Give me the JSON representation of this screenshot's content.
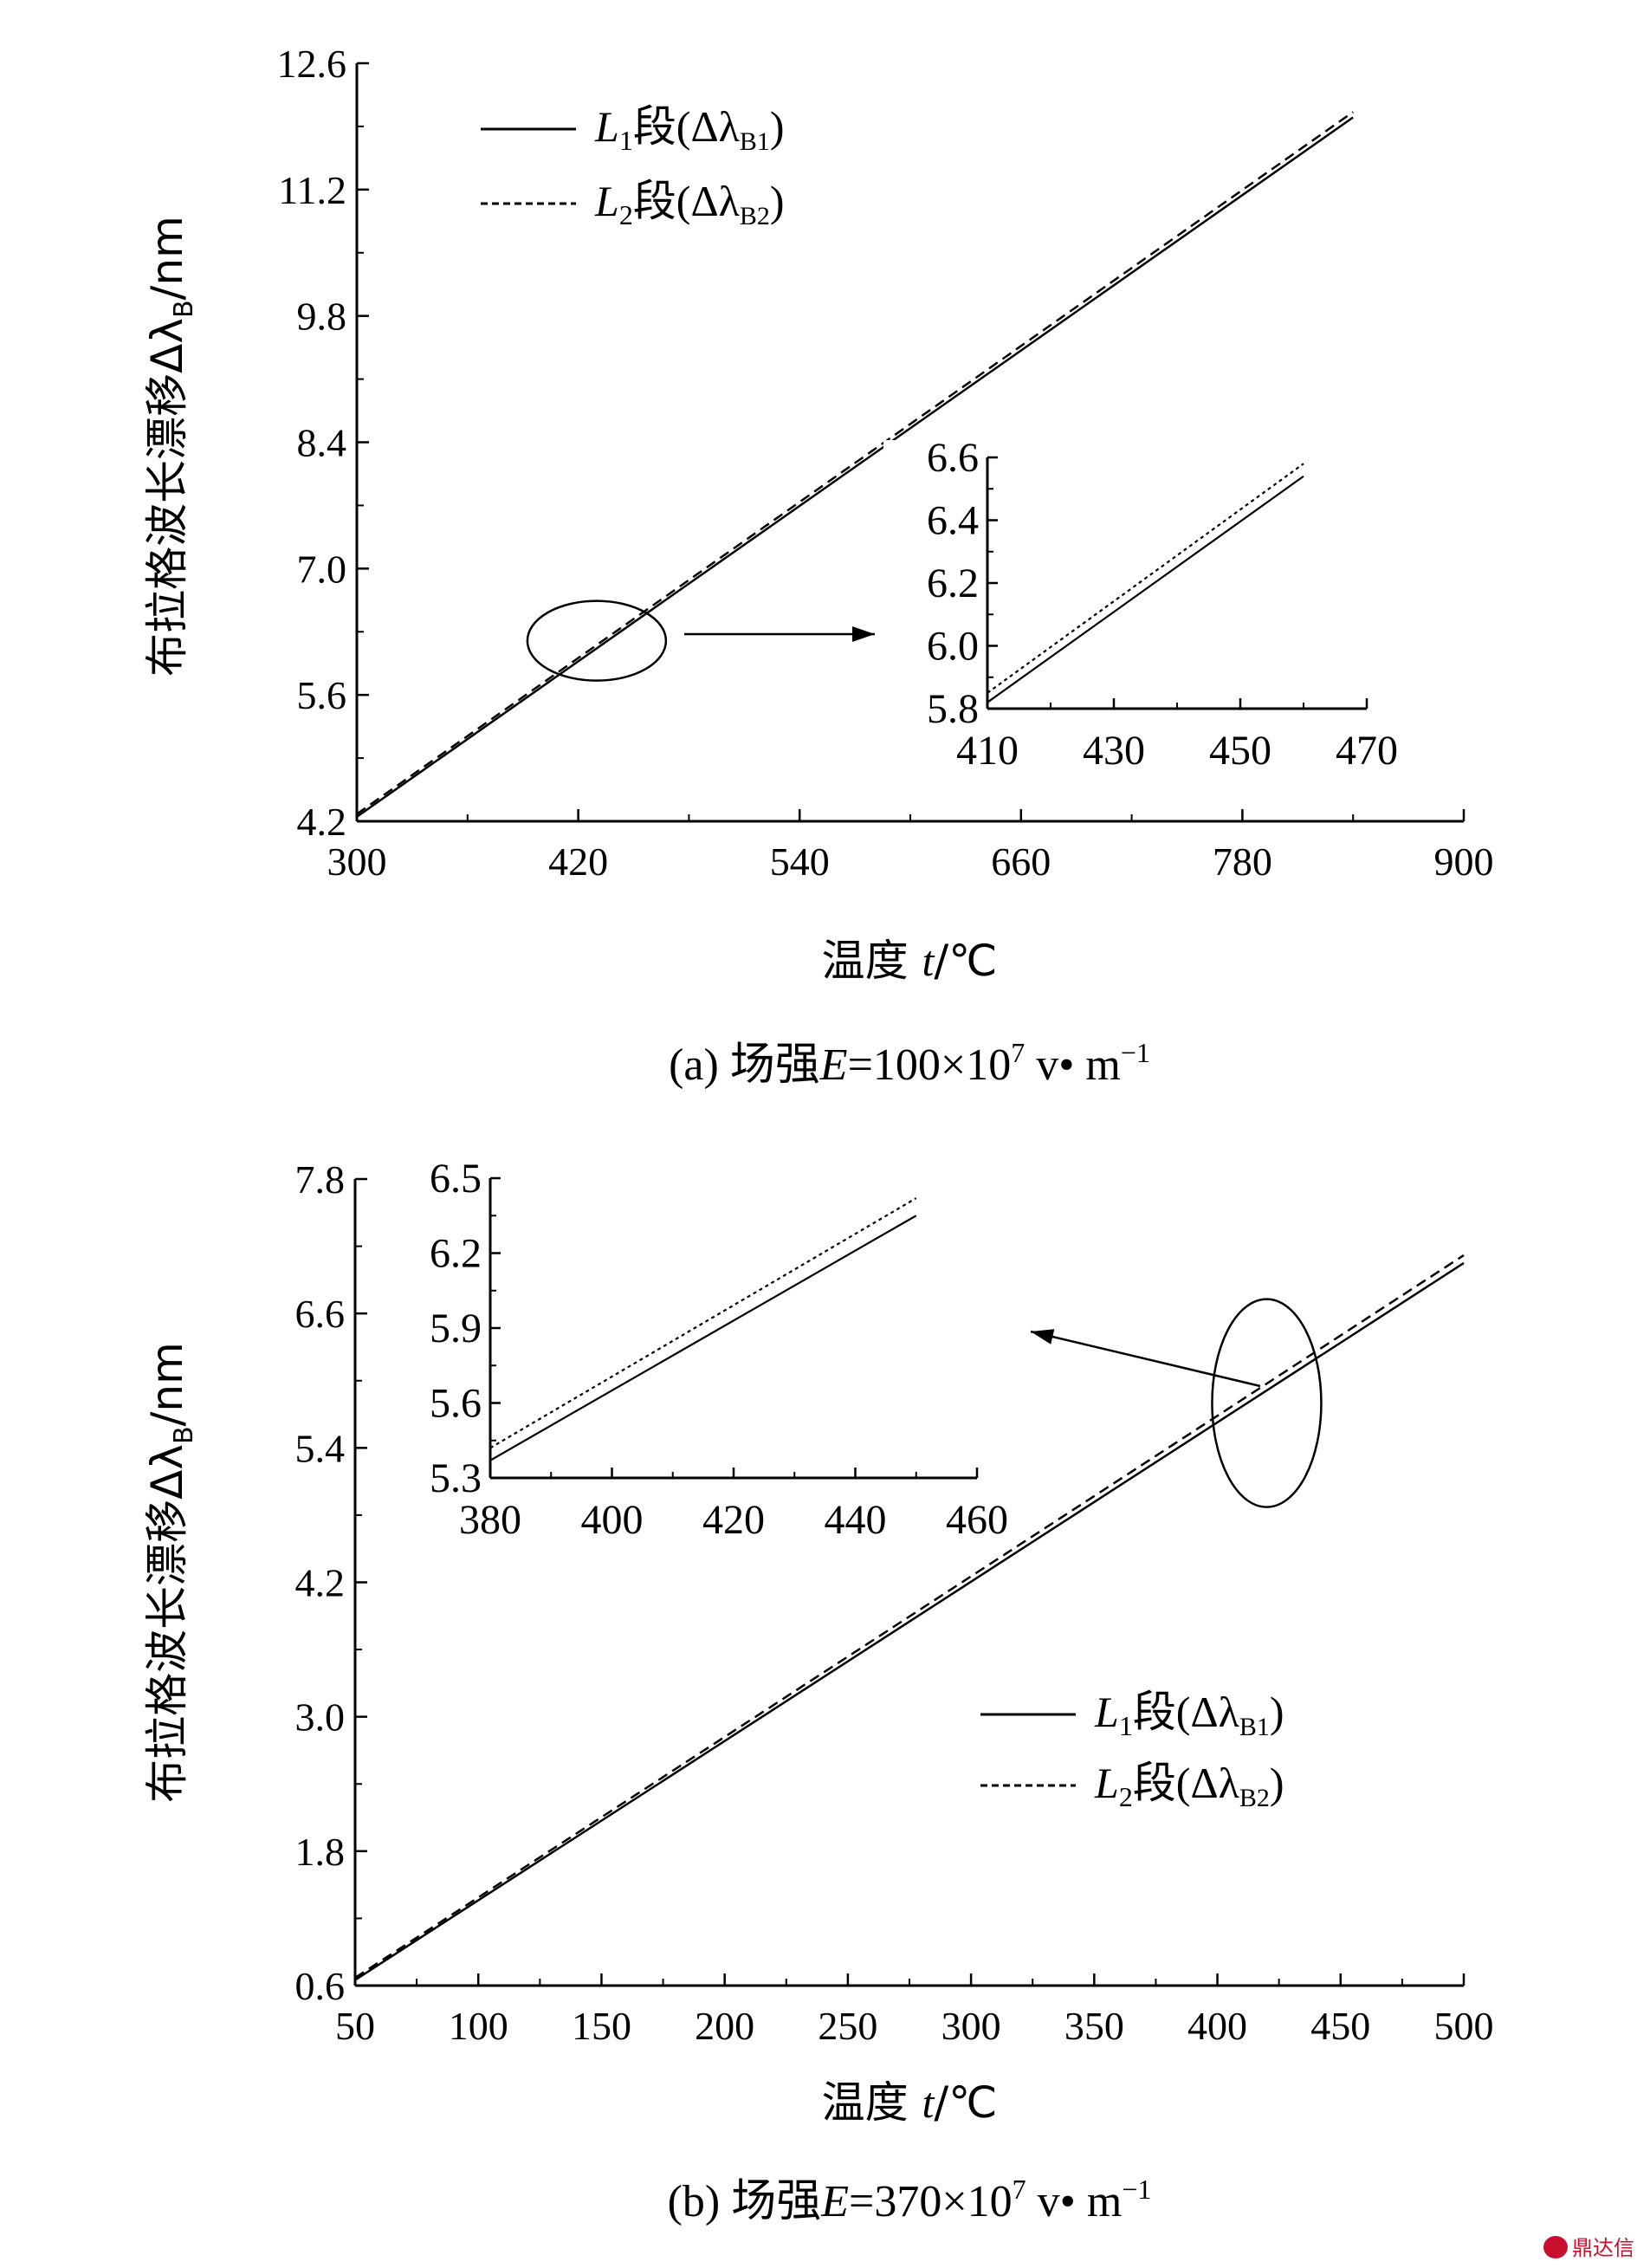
{
  "chart_data": [
    {
      "type": "line",
      "caption": {
        "prefix": "(a)  场强",
        "var": "E",
        "rest": "=100×10",
        "exp": "7",
        "unit": " v• m",
        "unit_exp": "−1"
      },
      "xlabel": {
        "text": "温度 ",
        "var": "t",
        "unit": "/℃"
      },
      "ylabel": {
        "text": "布拉格波长漂移Δλ",
        "sub": "B",
        "unit": "/nm"
      },
      "xlim": [
        300,
        900
      ],
      "ylim": [
        4.2,
        12.6
      ],
      "xticks": [
        "300",
        "420",
        "540",
        "660",
        "780",
        "900"
      ],
      "yticks": [
        "4.2",
        "5.6",
        "7.0",
        "8.4",
        "9.8",
        "11.2",
        "12.6"
      ],
      "legend_position": "top-left",
      "series": [
        {
          "name": "L1段(ΔλB1)",
          "label_var": "L",
          "label_sub": "1",
          "label_mid": "段(Δλ",
          "label_sub2": "B1",
          "label_end": ")",
          "style": "solid",
          "x": [
            300,
            840
          ],
          "y": [
            4.25,
            12.0
          ]
        },
        {
          "name": "L2段(ΔλB2)",
          "label_var": "L",
          "label_sub": "2",
          "label_mid": "段(Δλ",
          "label_sub2": "B2",
          "label_end": ")",
          "style": "dashed",
          "x": [
            300,
            840
          ],
          "y": [
            4.28,
            12.06
          ]
        }
      ],
      "inset": {
        "xlim": [
          410,
          470
        ],
        "ylim": [
          5.8,
          6.6
        ],
        "xticks": [
          "410",
          "430",
          "450",
          "470"
        ],
        "yticks": [
          "5.8",
          "6.0",
          "6.2",
          "6.4",
          "6.6"
        ],
        "series": [
          {
            "style": "solid",
            "x": [
              410,
              460
            ],
            "y": [
              5.82,
              6.54
            ]
          },
          {
            "style": "dotted",
            "x": [
              410,
              460
            ],
            "y": [
              5.85,
              6.58
            ]
          }
        ],
        "zoom_ellipse_center": {
          "x": 430,
          "y": 6.2
        }
      }
    },
    {
      "type": "line",
      "caption": {
        "prefix": "(b)  场强",
        "var": "E",
        "rest": "=370×10",
        "exp": "7",
        "unit": " v• m",
        "unit_exp": "−1"
      },
      "xlabel": {
        "text": "温度 ",
        "var": "t",
        "unit": "/℃"
      },
      "ylabel": {
        "text": "布拉格波长漂移Δλ",
        "sub": "B",
        "unit": "/nm"
      },
      "xlim": [
        50,
        500
      ],
      "ylim": [
        0.6,
        7.8
      ],
      "xticks": [
        "50",
        "100",
        "150",
        "200",
        "250",
        "300",
        "350",
        "400",
        "450",
        "500"
      ],
      "yticks": [
        "0.6",
        "1.8",
        "3.0",
        "4.2",
        "5.4",
        "6.6",
        "7.8"
      ],
      "legend_position": "lower-right",
      "series": [
        {
          "name": "L1段(ΔλB1)",
          "label_var": "L",
          "label_sub": "1",
          "label_mid": "段(Δλ",
          "label_sub2": "B1",
          "label_end": ")",
          "style": "solid",
          "x": [
            50,
            500
          ],
          "y": [
            0.65,
            7.05
          ]
        },
        {
          "name": "L2段(ΔλB2)",
          "label_var": "L",
          "label_sub": "2",
          "label_mid": "段(Δλ",
          "label_sub2": "B2",
          "label_end": ")",
          "style": "dashed",
          "x": [
            50,
            500
          ],
          "y": [
            0.67,
            7.12
          ]
        }
      ],
      "inset": {
        "xlim": [
          380,
          460
        ],
        "ylim": [
          5.3,
          6.5
        ],
        "xticks": [
          "380",
          "400",
          "420",
          "440",
          "460"
        ],
        "yticks": [
          "5.3",
          "5.6",
          "5.9",
          "6.2",
          "6.5"
        ],
        "series": [
          {
            "style": "solid",
            "x": [
              380,
              450
            ],
            "y": [
              5.37,
              6.35
            ]
          },
          {
            "style": "dotted",
            "x": [
              380,
              450
            ],
            "y": [
              5.42,
              6.42
            ]
          }
        ],
        "zoom_ellipse_center": {
          "x": 420,
          "y": 5.8
        }
      }
    }
  ],
  "watermark": {
    "icon": "logo-icon",
    "text": "鼎达信"
  }
}
